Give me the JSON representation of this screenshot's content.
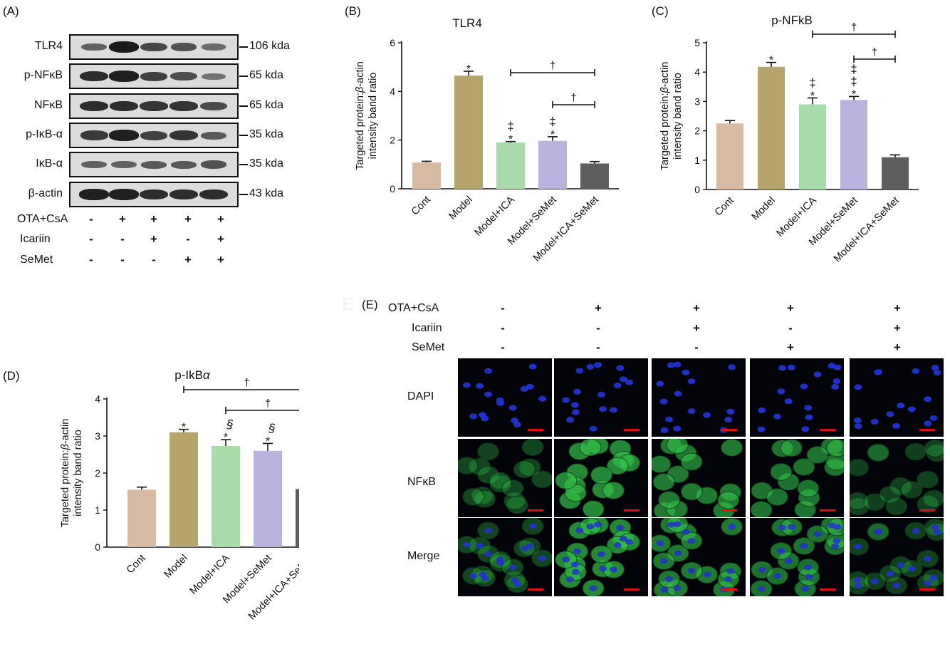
{
  "panels": {
    "a_label": "(A)",
    "b_label": "(B)",
    "c_label": "(C)",
    "d_label": "(D)",
    "e_label": "(E)"
  },
  "western_blot": {
    "rows": [
      {
        "name": "TLR4",
        "kda": "106 kda",
        "intensities": [
          0.45,
          1.0,
          0.65,
          0.55,
          0.35
        ]
      },
      {
        "name": "p-NFκB",
        "kda": "65 kda",
        "intensities": [
          0.85,
          0.95,
          0.7,
          0.6,
          0.3
        ]
      },
      {
        "name": "NFκB",
        "kda": "65 kda",
        "intensities": [
          0.85,
          0.85,
          0.8,
          0.8,
          0.6
        ]
      },
      {
        "name": "p-IκB-α",
        "kda": "35 kda",
        "intensities": [
          0.75,
          0.95,
          0.7,
          0.8,
          0.5
        ]
      },
      {
        "name": "IκB-α",
        "kda": "35 kda",
        "intensities": [
          0.45,
          0.45,
          0.5,
          0.5,
          0.55
        ]
      },
      {
        "name": "β-actin",
        "kda": "43 kda",
        "intensities": [
          0.95,
          0.95,
          0.85,
          0.85,
          0.85
        ]
      }
    ],
    "treatments": [
      {
        "name": "OTA+CsA",
        "signs": [
          "-",
          "+",
          "+",
          "+",
          "+"
        ]
      },
      {
        "name": "Icariin",
        "signs": [
          "-",
          "-",
          "+",
          "-",
          "+"
        ]
      },
      {
        "name": "SeMet",
        "signs": [
          "-",
          "-",
          "-",
          "+",
          "+"
        ]
      }
    ]
  },
  "chart_data": [
    {
      "id": "B",
      "type": "bar",
      "title": "TLR4",
      "ylabel_parts": [
        "Targeted protein:",
        "β",
        "-actin"
      ],
      "ylabel_line2": "intensity band ratio",
      "categories": [
        "Cont",
        "Model",
        "Model+ICA",
        "Model+SeMet",
        "Model+ICA+SeMet"
      ],
      "values": [
        1.08,
        4.65,
        1.9,
        1.97,
        1.04
      ],
      "errors": [
        0.05,
        0.18,
        0.04,
        0.17,
        0.08
      ],
      "colors": [
        "#d9bba3",
        "#b5a56d",
        "#a8dcab",
        "#b9b3df",
        "#5e5e5e"
      ],
      "ylim": [
        0,
        6
      ],
      "yticks": [
        0,
        2,
        4,
        6
      ],
      "marks": [
        [],
        [
          "*"
        ],
        [
          "‡",
          "*"
        ],
        [
          "‡",
          "*"
        ],
        []
      ],
      "brackets": [
        {
          "from": 2,
          "to": 4,
          "level": 0,
          "label": "†"
        },
        {
          "from": 3,
          "to": 4,
          "level": 1,
          "label": "†"
        }
      ]
    },
    {
      "id": "C",
      "type": "bar",
      "title": "p-NFkB",
      "ylabel_parts": [
        "Targeted protein:",
        "β",
        "-actin"
      ],
      "ylabel_line2": "intensity band ratio",
      "categories": [
        "Cont",
        "Model",
        "Model+ICA",
        "Model+SeMet",
        "Model+ICA+SeMet"
      ],
      "values": [
        2.25,
        4.18,
        2.9,
        3.05,
        1.1
      ],
      "errors": [
        0.1,
        0.15,
        0.22,
        0.12,
        0.08
      ],
      "colors": [
        "#d9bba3",
        "#b5a56d",
        "#a8dcab",
        "#b9b3df",
        "#5e5e5e"
      ],
      "ylim": [
        0,
        5
      ],
      "yticks": [
        0,
        1,
        2,
        3,
        4,
        5
      ],
      "marks": [
        [],
        [
          "*"
        ],
        [
          "‡",
          "*"
        ],
        [
          "‡",
          "‡",
          "*"
        ],
        []
      ],
      "brackets": [
        {
          "from": 2,
          "to": 4,
          "level": 0,
          "label": "†"
        },
        {
          "from": 3,
          "to": 4,
          "level": 1,
          "label": "†"
        }
      ]
    },
    {
      "id": "D",
      "type": "bar",
      "title_parts": [
        "p-IkB",
        "α"
      ],
      "ylabel_parts": [
        "Targeted protein:",
        "β",
        "-actin"
      ],
      "ylabel_line2": "intensity band ratio",
      "categories": [
        "Cont",
        "Model",
        "Model+ICA",
        "Model+SeMet",
        "Model+ICA+SeMet"
      ],
      "values": [
        1.55,
        3.1,
        2.73,
        2.6,
        1.57
      ],
      "errors": [
        0.07,
        0.08,
        0.17,
        0.2,
        0.12
      ],
      "colors": [
        "#d9bba3",
        "#b5a56d",
        "#a8dcab",
        "#b9b3df",
        "#5e5e5e"
      ],
      "ylim": [
        0,
        4
      ],
      "yticks": [
        0,
        1,
        2,
        3,
        4
      ],
      "marks": [
        [],
        [
          "*"
        ],
        [
          "§",
          "*"
        ],
        [
          "§",
          "*"
        ],
        []
      ],
      "brackets": [
        {
          "from": 1,
          "to": 4,
          "level": 0,
          "label": "†"
        },
        {
          "from": 2,
          "to": 4,
          "level": 1,
          "label": "†"
        }
      ]
    }
  ],
  "immunofluorescence": {
    "faint_letter": "E",
    "treatments": [
      {
        "name": "OTA+CsA",
        "signs": [
          "-",
          "+",
          "+",
          "+",
          "+"
        ]
      },
      {
        "name": "Icariin",
        "signs": [
          "-",
          "-",
          "+",
          "-",
          "+"
        ]
      },
      {
        "name": "SeMet",
        "signs": [
          "-",
          "-",
          "-",
          "+",
          "+"
        ]
      }
    ],
    "rows": [
      {
        "label": "DAPI",
        "channel": "dapi"
      },
      {
        "label": "NFκB",
        "channel": "nfkb"
      },
      {
        "label": "Merge",
        "channel": "merge"
      }
    ],
    "nfkb_intensity": [
      0.35,
      1.0,
      0.85,
      0.8,
      0.3
    ],
    "colors": {
      "dapi": "#2233cc",
      "nfkb": "#33c04a",
      "scalebar": "#e01010"
    }
  }
}
